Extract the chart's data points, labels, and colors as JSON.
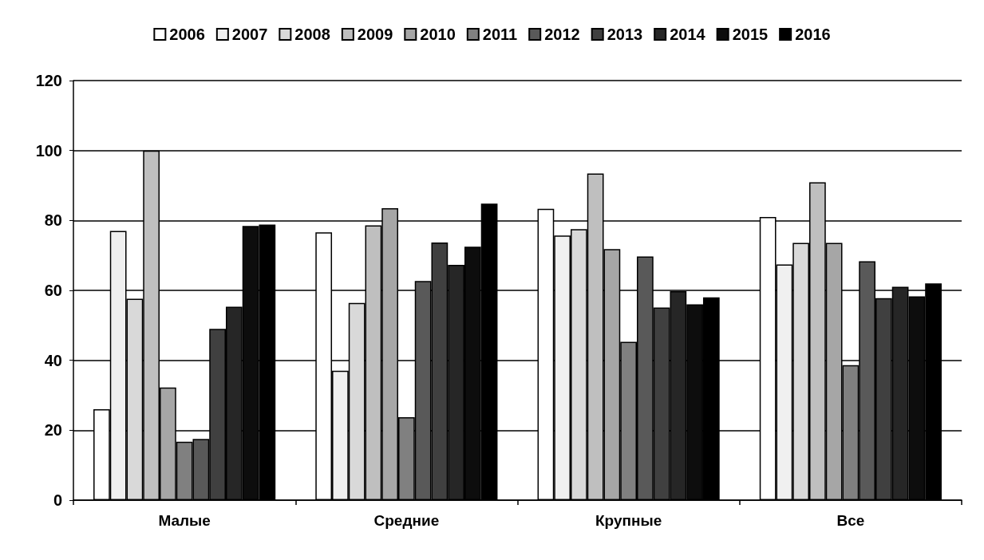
{
  "chart_data": {
    "type": "bar",
    "categories": [
      "Малые",
      "Средние",
      "Крупные",
      "Все"
    ],
    "series": [
      {
        "name": "2006",
        "color": "#ffffff",
        "values": [
          26,
          76.6,
          83.3,
          81
        ]
      },
      {
        "name": "2007",
        "color": "#f0f0f0",
        "values": [
          77,
          37,
          75.7,
          67.4
        ]
      },
      {
        "name": "2008",
        "color": "#d9d9d9",
        "values": [
          57.6,
          56.4,
          77.5,
          73.6
        ]
      },
      {
        "name": "2009",
        "color": "#bfbfbf",
        "values": [
          100,
          78.6,
          93.4,
          90.9
        ]
      },
      {
        "name": "2010",
        "color": "#a6a6a6",
        "values": [
          32.2,
          83.5,
          71.8,
          73.6
        ]
      },
      {
        "name": "2011",
        "color": "#808080",
        "values": [
          16.7,
          23.7,
          45.3,
          38.6
        ]
      },
      {
        "name": "2012",
        "color": "#595959",
        "values": [
          17.5,
          62.7,
          69.7,
          68.3
        ]
      },
      {
        "name": "2013",
        "color": "#404040",
        "values": [
          49,
          73.7,
          55.1,
          57.8
        ]
      },
      {
        "name": "2014",
        "color": "#262626",
        "values": [
          55.3,
          67.3,
          59.8,
          61
        ]
      },
      {
        "name": "2015",
        "color": "#0d0d0d",
        "values": [
          78.4,
          72.5,
          56,
          58.3
        ]
      },
      {
        "name": "2016",
        "color": "#000000",
        "values": [
          78.8,
          84.8,
          58,
          62
        ]
      }
    ],
    "ylim": [
      0,
      120
    ],
    "yticks": [
      0,
      20,
      40,
      60,
      80,
      100,
      120
    ],
    "grid": "y",
    "legend": "top"
  }
}
